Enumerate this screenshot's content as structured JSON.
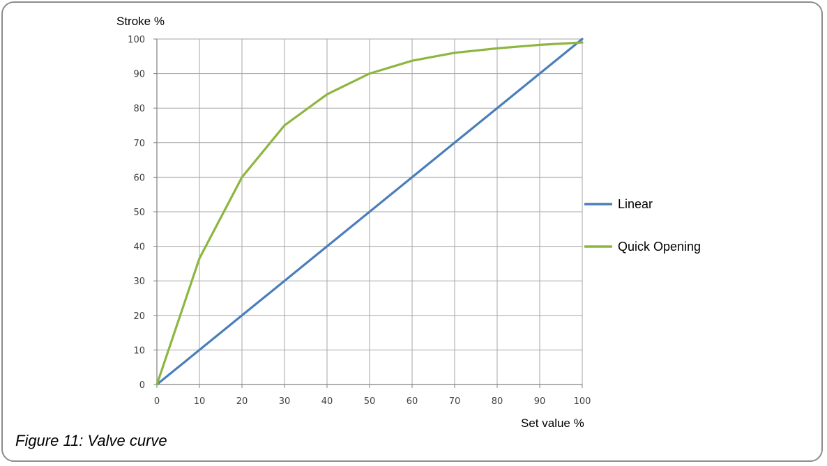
{
  "caption": "Figure 11: Valve curve",
  "chart_data": {
    "type": "line",
    "xlabel": "Set value %",
    "ylabel": "Stroke %",
    "xlim": [
      0,
      100
    ],
    "ylim": [
      0,
      100
    ],
    "x_ticks": [
      "0",
      "10",
      "20",
      "30",
      "40",
      "50",
      "60",
      "70",
      "80",
      "90",
      "100"
    ],
    "y_ticks": [
      "0",
      "10",
      "20",
      "30",
      "40",
      "50",
      "60",
      "70",
      "80",
      "90",
      "100"
    ],
    "grid": true,
    "legend_position": "right",
    "series": [
      {
        "name": "Linear",
        "color": "#4a7ebb",
        "x": [
          0,
          10,
          20,
          30,
          40,
          50,
          60,
          70,
          80,
          90,
          100
        ],
        "y": [
          0,
          10,
          20,
          30,
          40,
          50,
          60,
          70,
          80,
          90,
          100
        ]
      },
      {
        "name": "Quick Opening",
        "color": "#8db640",
        "x": [
          0,
          10,
          20,
          30,
          40,
          50,
          60,
          70,
          80,
          90,
          100
        ],
        "y": [
          0,
          36.5,
          60,
          75,
          84,
          90,
          93.7,
          96,
          97.3,
          98.3,
          99
        ]
      }
    ]
  }
}
